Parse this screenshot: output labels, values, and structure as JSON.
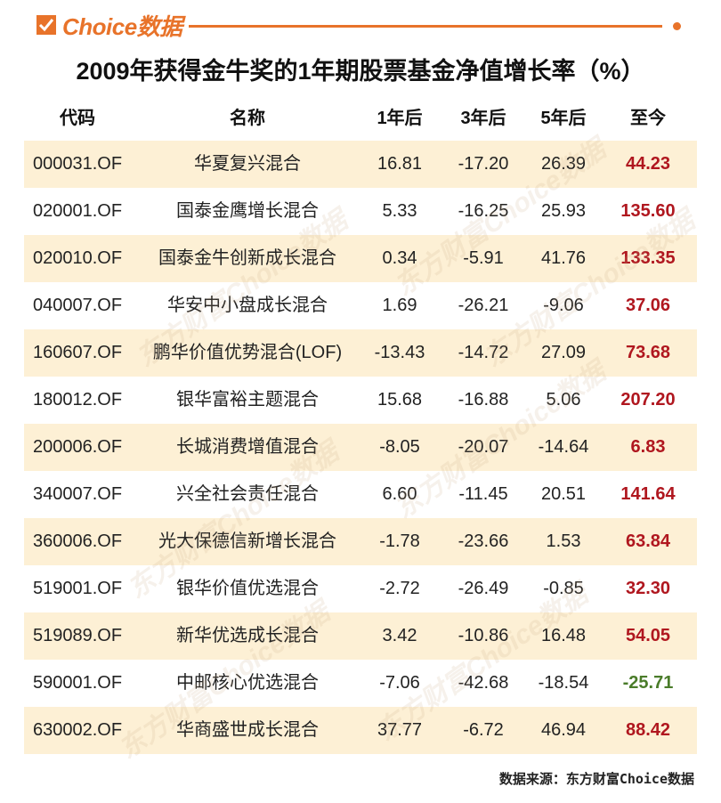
{
  "header": {
    "logo": "Choice数据"
  },
  "title": "2009年获得金牛奖的1年期股票基金净值增长率（%）",
  "table": {
    "columns": [
      "代码",
      "名称",
      "1年后",
      "3年后",
      "5年后",
      "至今"
    ],
    "rows": [
      [
        "000031.OF",
        "华夏复兴混合",
        "16.81",
        "-17.20",
        "26.39",
        "44.23"
      ],
      [
        "020001.OF",
        "国泰金鹰增长混合",
        "5.33",
        "-16.25",
        "25.93",
        "135.60"
      ],
      [
        "020010.OF",
        "国泰金牛创新成长混合",
        "0.34",
        "-5.91",
        "41.76",
        "133.35"
      ],
      [
        "040007.OF",
        "华安中小盘成长混合",
        "1.69",
        "-26.21",
        "-9.06",
        "37.06"
      ],
      [
        "160607.OF",
        "鹏华价值优势混合(LOF)",
        "-13.43",
        "-14.72",
        "27.09",
        "73.68"
      ],
      [
        "180012.OF",
        "银华富裕主题混合",
        "15.68",
        "-16.88",
        "5.06",
        "207.20"
      ],
      [
        "200006.OF",
        "长城消费增值混合",
        "-8.05",
        "-20.07",
        "-14.64",
        "6.83"
      ],
      [
        "340007.OF",
        "兴全社会责任混合",
        "6.60",
        "-11.45",
        "20.51",
        "141.64"
      ],
      [
        "360006.OF",
        "光大保德信新增长混合",
        "-1.78",
        "-23.66",
        "1.53",
        "63.84"
      ],
      [
        "519001.OF",
        "银华价值优选混合",
        "-2.72",
        "-26.49",
        "-0.85",
        "32.30"
      ],
      [
        "519089.OF",
        "新华优选成长混合",
        "3.42",
        "-10.86",
        "16.48",
        "54.05"
      ],
      [
        "590001.OF",
        "中邮核心优选混合",
        "-7.06",
        "-42.68",
        "-18.54",
        "-25.71"
      ],
      [
        "630002.OF",
        "华商盛世成长混合",
        "37.77",
        "-6.72",
        "46.94",
        "88.42"
      ]
    ],
    "last_column_positive_color": "#b0171f",
    "last_column_negative_color": "#4a7c2a"
  },
  "watermark": "东方财富Choice数据",
  "source": "数据来源：东方财富Choice数据"
}
